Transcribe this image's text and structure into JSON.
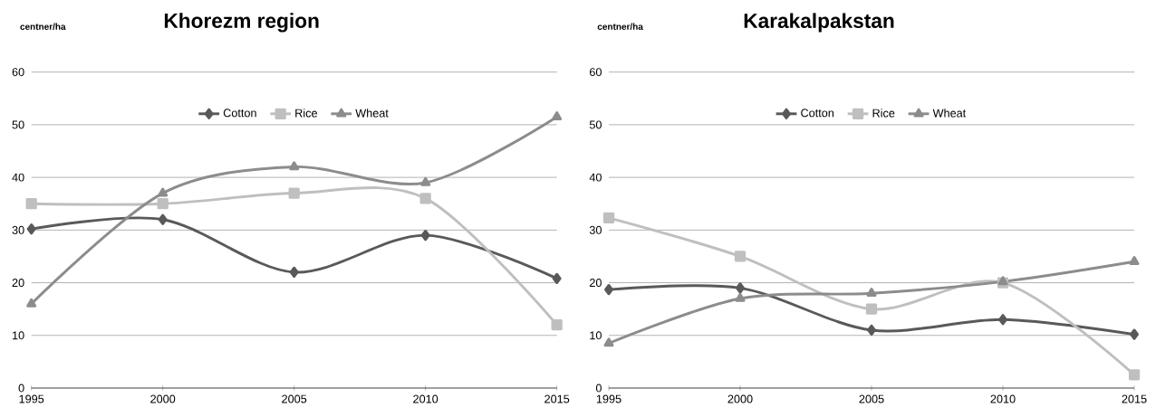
{
  "chart_data": [
    {
      "type": "line",
      "title": "Khorezm region",
      "ylabel": "centner/ha",
      "x": [
        1995,
        2000,
        2005,
        2010,
        2015
      ],
      "xlim": [
        1995,
        2015
      ],
      "xticks": [
        1995,
        2000,
        2005,
        2010,
        2015
      ],
      "ylim": [
        0,
        60
      ],
      "yticks": [
        0,
        10,
        20,
        30,
        40,
        50,
        60
      ],
      "grid": "y",
      "legend": "top",
      "series": [
        {
          "name": "Cotton",
          "color": "#595959",
          "marker": "diamond",
          "values": [
            30.2,
            32,
            22,
            29,
            20.8
          ]
        },
        {
          "name": "Rice",
          "color": "#bfbfbf",
          "marker": "square",
          "values": [
            35,
            35,
            37,
            36,
            12
          ]
        },
        {
          "name": "Wheat",
          "color": "#8c8c8c",
          "marker": "triangle",
          "values": [
            16,
            37,
            42,
            39,
            51.5
          ]
        }
      ]
    },
    {
      "type": "line",
      "title": "Karakalpakstan",
      "ylabel": "centner/ha",
      "x": [
        1995,
        2000,
        2005,
        2010,
        2015
      ],
      "xlim": [
        1995,
        2015
      ],
      "xticks": [
        1995,
        2000,
        2005,
        2010,
        2015
      ],
      "ylim": [
        0,
        60
      ],
      "yticks": [
        0,
        10,
        20,
        30,
        40,
        50,
        60
      ],
      "grid": "y",
      "legend": "top",
      "series": [
        {
          "name": "Cotton",
          "color": "#595959",
          "marker": "diamond",
          "values": [
            18.7,
            19,
            11,
            13,
            10.2
          ]
        },
        {
          "name": "Rice",
          "color": "#bfbfbf",
          "marker": "square",
          "values": [
            32.3,
            25,
            15,
            20,
            2.5
          ]
        },
        {
          "name": "Wheat",
          "color": "#8c8c8c",
          "marker": "triangle",
          "values": [
            8.5,
            17,
            18,
            20.2,
            24
          ]
        }
      ]
    }
  ]
}
